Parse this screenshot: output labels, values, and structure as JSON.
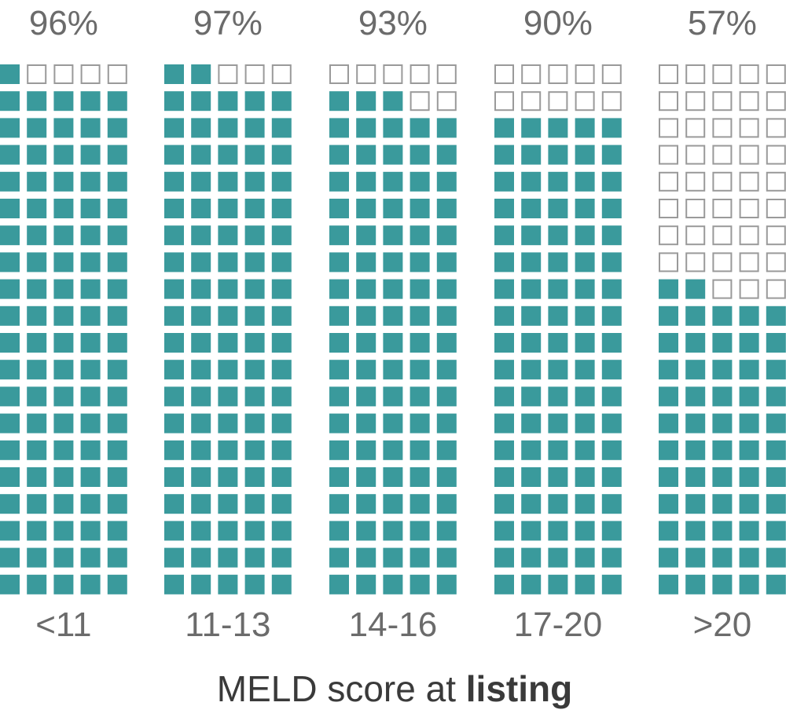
{
  "chart_data": {
    "type": "waffle",
    "title": "",
    "xlabel": "MELD score at listing",
    "xlabel_parts": {
      "normal": "MELD score at ",
      "bold": "listing"
    },
    "units_per_column": 100,
    "grid": "5 columns x 20 rows",
    "categories": [
      "<11",
      "11-13",
      "14-16",
      "17-20",
      ">20"
    ],
    "values": [
      96,
      97,
      93,
      90,
      57
    ],
    "value_labels": [
      "96%",
      "97%",
      "93%",
      "90%",
      "57%"
    ],
    "colors": {
      "filled": "#3a9a9c",
      "empty_stroke": "#9a9a9a",
      "empty_fill": "#ffffff",
      "label": "#6b6b6b",
      "axis_title": "#3a3a3a"
    }
  }
}
